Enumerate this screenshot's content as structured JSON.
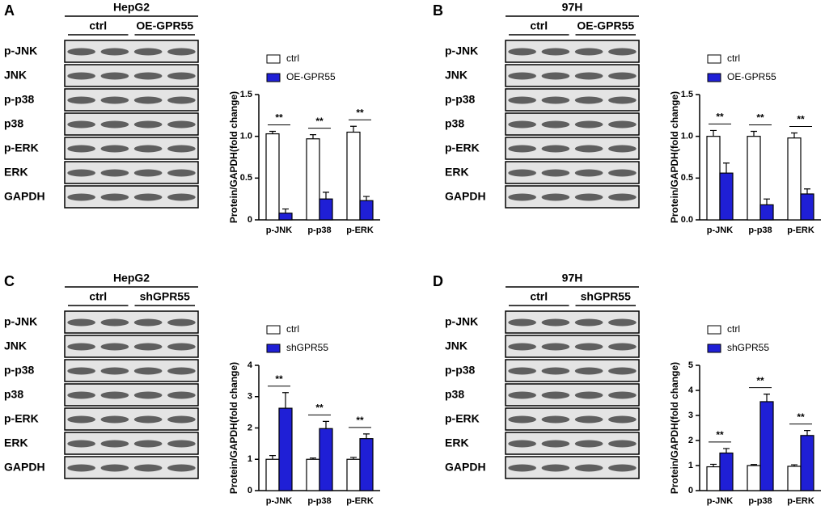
{
  "blots": [
    {
      "label": "A",
      "cell_line": "HepG2",
      "groups": [
        "ctrl",
        "OE-GPR55"
      ],
      "bands": [
        "p-JNK",
        "JNK",
        "p-p38",
        "p38",
        "p-ERK",
        "ERK",
        "GAPDH"
      ]
    },
    {
      "label": "B",
      "cell_line": "97H",
      "groups": [
        "ctrl",
        "OE-GPR55"
      ],
      "bands": [
        "p-JNK",
        "JNK",
        "p-p38",
        "p38",
        "p-ERK",
        "ERK",
        "GAPDH"
      ]
    },
    {
      "label": "C",
      "cell_line": "HepG2",
      "groups": [
        "ctrl",
        "shGPR55"
      ],
      "bands": [
        "p-JNK",
        "JNK",
        "p-p38",
        "p38",
        "p-ERK",
        "ERK",
        "GAPDH"
      ]
    },
    {
      "label": "D",
      "cell_line": "97H",
      "groups": [
        "ctrl",
        "shGPR55"
      ],
      "bands": [
        "p-JNK",
        "JNK",
        "p-p38",
        "p38",
        "p-ERK",
        "ERK",
        "GAPDH"
      ]
    }
  ],
  "chart_data": [
    {
      "type": "bar",
      "y_label": "Protein/GAPDH(fold change)",
      "categories": [
        "p-JNK",
        "p-p38",
        "p-ERK"
      ],
      "series": [
        {
          "name": "ctrl",
          "color": "#ffffff",
          "values": [
            1.03,
            0.97,
            1.05
          ],
          "errors": [
            0.03,
            0.05,
            0.07
          ]
        },
        {
          "name": "OE-GPR55",
          "color": "#1f1fd6",
          "values": [
            0.08,
            0.25,
            0.23
          ],
          "errors": [
            0.05,
            0.08,
            0.05
          ]
        }
      ],
      "annotations": [
        "**",
        "**",
        "**"
      ],
      "ylim": [
        0,
        1.5
      ],
      "yticks": [
        0,
        0.5,
        {
          "value": 1,
          "label": "1.0"
        },
        1.5
      ]
    },
    {
      "type": "bar",
      "y_label": "Protein/GAPDH(fold change)",
      "categories": [
        "p-JNK",
        "p-p38",
        "p-ERK"
      ],
      "series": [
        {
          "name": "ctrl",
          "color": "#ffffff",
          "values": [
            1.0,
            1.0,
            0.98
          ],
          "errors": [
            0.07,
            0.06,
            0.06
          ]
        },
        {
          "name": "OE-GPR55",
          "color": "#1f1fd6",
          "values": [
            0.56,
            0.18,
            0.31
          ],
          "errors": [
            0.12,
            0.07,
            0.06
          ]
        }
      ],
      "annotations": [
        "**",
        "**",
        "**"
      ],
      "ylim": [
        0,
        1.5
      ],
      "yticks": [
        {
          "value": 0,
          "label": "0.0"
        },
        0.5,
        {
          "value": 1,
          "label": "1.0"
        },
        1.5
      ]
    },
    {
      "type": "bar",
      "y_label": "Protein/GAPDH(fold change)",
      "categories": [
        "p-JNK",
        "p-p38",
        "p-ERK"
      ],
      "series": [
        {
          "name": "ctrl",
          "color": "#ffffff",
          "values": [
            1.0,
            1.0,
            1.0
          ],
          "errors": [
            0.12,
            0.04,
            0.06
          ]
        },
        {
          "name": "shGPR55",
          "color": "#1f1fd6",
          "values": [
            2.63,
            1.98,
            1.66
          ],
          "errors": [
            0.5,
            0.23,
            0.15
          ]
        }
      ],
      "annotations": [
        "**",
        "**",
        "**"
      ],
      "ylim": [
        0,
        4
      ],
      "yticks": [
        0,
        1,
        2,
        3,
        4
      ]
    },
    {
      "type": "bar",
      "y_label": "Protein/GAPDH(fold change)",
      "categories": [
        "p-JNK",
        "p-p38",
        "p-ERK"
      ],
      "series": [
        {
          "name": "ctrl",
          "color": "#ffffff",
          "values": [
            0.95,
            1.0,
            0.97
          ],
          "errors": [
            0.1,
            0.04,
            0.06
          ]
        },
        {
          "name": "shGPR55",
          "color": "#1f1fd6",
          "values": [
            1.5,
            3.55,
            2.2
          ],
          "errors": [
            0.18,
            0.3,
            0.2
          ]
        }
      ],
      "annotations": [
        "**",
        "**",
        "**"
      ],
      "ylim": [
        0,
        5
      ],
      "yticks": [
        0,
        1,
        2,
        3,
        4,
        5
      ]
    }
  ]
}
